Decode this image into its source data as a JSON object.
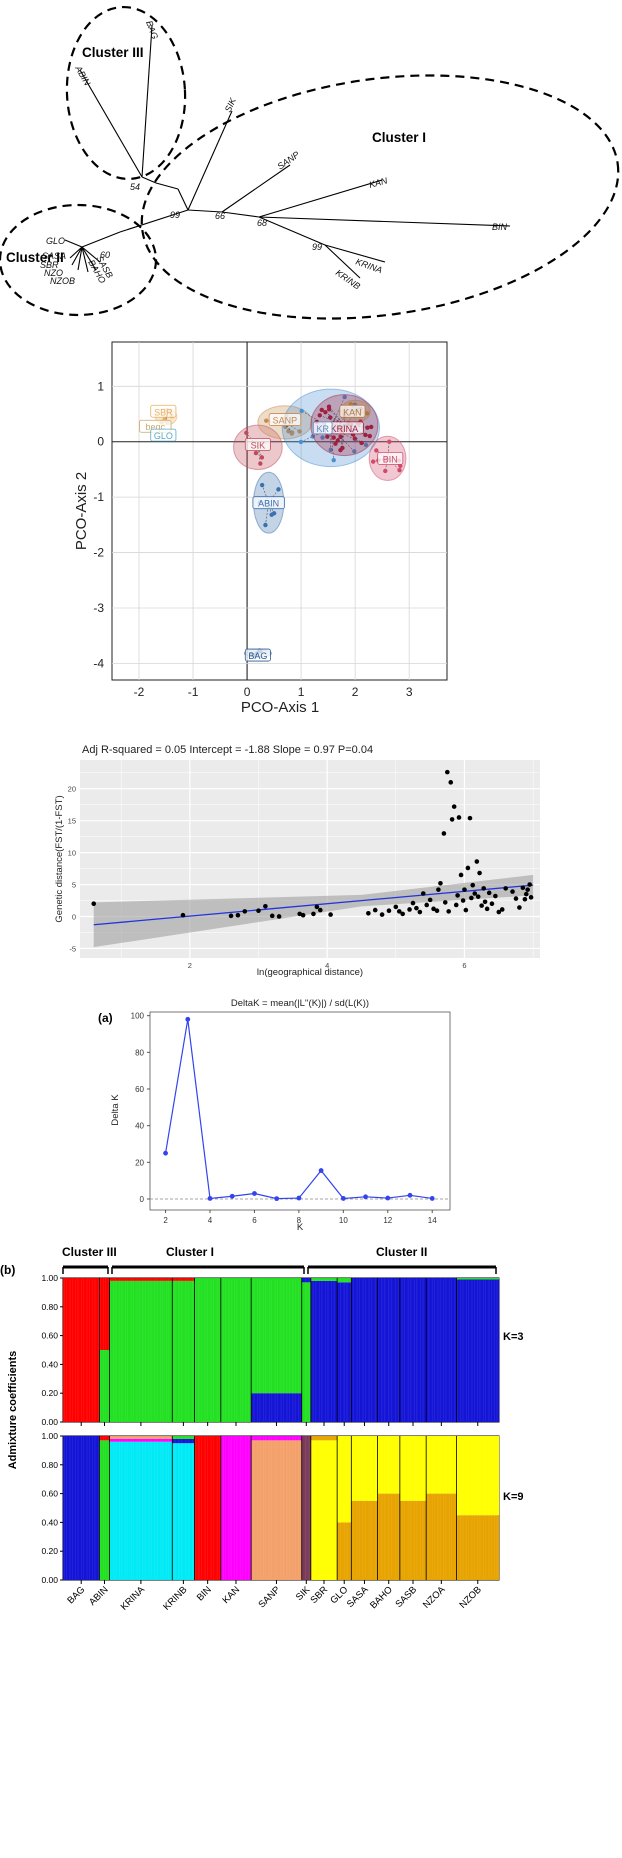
{
  "colors": {
    "red": "#ff0000",
    "green": "#22e022",
    "blue": "#1414d6",
    "cyan": "#00eaf6",
    "magenta": "#ff00ff",
    "orange": "#f4a06a",
    "purple": "#7a3a5a",
    "yellow": "#ffff00",
    "gold": "#e7a400",
    "regression_line": "#2233dd",
    "delta_line": "#3344ee"
  },
  "tree": {
    "clusters": [
      {
        "name": "Cluster III",
        "label": "Cluster III"
      },
      {
        "name": "Cluster I",
        "label": "Cluster I"
      },
      {
        "name": "Cluster II",
        "label": "Cluster II"
      }
    ],
    "tips": [
      {
        "id": "bag",
        "label": "BAG"
      },
      {
        "id": "abin",
        "label": "ABIN"
      },
      {
        "id": "sik",
        "label": "SIK"
      },
      {
        "id": "sanp",
        "label": "SANP"
      },
      {
        "id": "kan",
        "label": "KAN"
      },
      {
        "id": "bin",
        "label": "BIN"
      },
      {
        "id": "krina",
        "label": "KRINA"
      },
      {
        "id": "krinb",
        "label": "KRINB"
      },
      {
        "id": "glo",
        "label": "GLO"
      },
      {
        "id": "sasa",
        "label": "SASA"
      },
      {
        "id": "sbr",
        "label": "SBR"
      },
      {
        "id": "nzo",
        "label": "NZO"
      },
      {
        "id": "baho",
        "label": "BAHO"
      },
      {
        "id": "sasb",
        "label": "SASB"
      },
      {
        "id": "nzob",
        "label": "NZOB"
      }
    ],
    "bootstrap": [
      {
        "id": "b54",
        "label": "54"
      },
      {
        "id": "b99a",
        "label": "99"
      },
      {
        "id": "b66",
        "label": "66"
      },
      {
        "id": "b68",
        "label": "68"
      },
      {
        "id": "b99b",
        "label": "99"
      },
      {
        "id": "b60",
        "label": "60"
      }
    ]
  },
  "pco": {
    "xlabel": "PCO-Axis 1",
    "ylabel": "PCO-Axis 2",
    "xticks": [
      "-2",
      "-1",
      "0",
      "1",
      "2",
      "3"
    ],
    "yticks": [
      "1",
      "0",
      "-1",
      "-2",
      "-3",
      "-4"
    ],
    "xlim": [
      -2.5,
      3.7
    ],
    "ylim": [
      -4.3,
      1.8
    ],
    "groups": [
      {
        "label": "SBR",
        "x": -1.55,
        "y": 0.55,
        "color": "#e8b060"
      },
      {
        "label": "beqc",
        "x": -1.7,
        "y": 0.28,
        "color": "#c8a86a"
      },
      {
        "label": "GLO",
        "x": -1.55,
        "y": 0.12,
        "color": "#5aa8c8"
      },
      {
        "label": "SIK",
        "x": 0.2,
        "y": -0.05,
        "color": "#c04a5a"
      },
      {
        "label": "SANP",
        "x": 0.7,
        "y": 0.4,
        "color": "#c88a50"
      },
      {
        "label": "KAN",
        "x": 1.95,
        "y": 0.55,
        "color": "#b07840"
      },
      {
        "label": "KRINA",
        "x": 1.8,
        "y": 0.25,
        "color": "#a02040"
      },
      {
        "label": "KR",
        "x": 1.4,
        "y": 0.25,
        "color": "#4a90d0"
      },
      {
        "label": "BIN",
        "x": 2.65,
        "y": -0.3,
        "color": "#d04a6a"
      },
      {
        "label": "ABIN",
        "x": 0.4,
        "y": -1.1,
        "color": "#3a70b0"
      },
      {
        "label": "BAG",
        "x": 0.2,
        "y": -3.85,
        "color": "#2a5a90"
      }
    ]
  },
  "ibd": {
    "annotation": "Adj R-squared = 0.05  Intercept = -1.88 Slope = 0.97  P=0.04",
    "xlabel": "ln(geographical distance)",
    "ylabel": "Genetic distance(FST/(1-FST)",
    "xticks": [
      "2",
      "4",
      "6"
    ],
    "yticks": [
      "20",
      "15",
      "10",
      "5",
      "0",
      "-5"
    ],
    "xlim": [
      0.4,
      7.1
    ],
    "ylim": [
      -6.5,
      24.5
    ],
    "intercept": -1.88,
    "slope": 0.97
  },
  "deltak": {
    "panel_label": "(a)",
    "title": "DeltaK = mean(|L''(K)|) / sd(L(K))",
    "xlabel": "K",
    "ylabel": "Delta K",
    "xticks": [
      "2",
      "4",
      "6",
      "8",
      "10",
      "12",
      "14"
    ],
    "yticks": [
      "100",
      "80",
      "60",
      "40",
      "20",
      "0"
    ],
    "xlim": [
      1.3,
      14.8
    ],
    "ylim": [
      -6,
      102
    ]
  },
  "structure": {
    "panel_label": "(b)",
    "ylabel": "Admixture coefficients",
    "clusters": [
      "Cluster III",
      "Cluster I",
      "Cluster II"
    ],
    "k3_label": "K=3",
    "k9_label": "K=9",
    "yticks": [
      "1.00",
      "0.80",
      "0.60",
      "0.40",
      "0.20",
      "0.00"
    ],
    "populations": [
      "BAG",
      "ABIN",
      "KRINA",
      "KRINB",
      "BIN",
      "KAN",
      "SANP",
      "SIK",
      "SBR",
      "GLO",
      "SASA",
      "BAHO",
      "SASB",
      "NZOA",
      "NZOB"
    ]
  },
  "chart_data": [
    {
      "type": "scatter",
      "title": "",
      "xlabel": "PCO-Axis 1",
      "ylabel": "PCO-Axis 2",
      "xlim": [
        -2.5,
        3.7
      ],
      "ylim": [
        -4.3,
        1.8
      ],
      "series": [
        {
          "name": "SBR",
          "points": [
            [
              -1.55,
              0.55
            ]
          ]
        },
        {
          "name": "GLO",
          "points": [
            [
              -1.55,
              0.12
            ]
          ]
        },
        {
          "name": "SIK",
          "points": [
            [
              0.2,
              -0.05
            ]
          ]
        },
        {
          "name": "SANP",
          "points": [
            [
              0.7,
              0.4
            ]
          ]
        },
        {
          "name": "KAN",
          "points": [
            [
              1.95,
              0.55
            ]
          ]
        },
        {
          "name": "KRINA",
          "points": [
            [
              1.8,
              0.25
            ]
          ]
        },
        {
          "name": "BIN",
          "points": [
            [
              2.65,
              -0.3
            ]
          ]
        },
        {
          "name": "ABIN",
          "points": [
            [
              0.4,
              -1.1
            ]
          ]
        },
        {
          "name": "BAG",
          "points": [
            [
              0.2,
              -3.85
            ]
          ]
        }
      ]
    },
    {
      "type": "scatter",
      "title": "Adj R-squared = 0.05  Intercept = -1.88 Slope = 0.97  P=0.04",
      "xlabel": "ln(geographical distance)",
      "ylabel": "Genetic distance(FST/(1-FST)",
      "xlim": [
        0.4,
        7.1
      ],
      "ylim": [
        -6.5,
        24.5
      ],
      "points": [
        [
          0.6,
          2.0
        ],
        [
          1.9,
          0.2
        ],
        [
          2.6,
          0.1
        ],
        [
          2.7,
          0.2
        ],
        [
          2.8,
          0.8
        ],
        [
          3.0,
          0.9
        ],
        [
          3.1,
          1.6
        ],
        [
          3.2,
          0.1
        ],
        [
          3.3,
          0.0
        ],
        [
          3.6,
          0.4
        ],
        [
          3.65,
          0.2
        ],
        [
          3.8,
          0.4
        ],
        [
          3.85,
          1.5
        ],
        [
          3.9,
          1.0
        ],
        [
          4.05,
          0.3
        ],
        [
          4.6,
          0.5
        ],
        [
          4.7,
          1.0
        ],
        [
          4.8,
          0.3
        ],
        [
          4.9,
          0.9
        ],
        [
          5.0,
          1.5
        ],
        [
          5.05,
          0.8
        ],
        [
          5.1,
          0.4
        ],
        [
          5.2,
          1.1
        ],
        [
          5.25,
          2.1
        ],
        [
          5.3,
          1.3
        ],
        [
          5.35,
          0.7
        ],
        [
          5.4,
          3.6
        ],
        [
          5.45,
          1.8
        ],
        [
          5.5,
          2.6
        ],
        [
          5.55,
          1.2
        ],
        [
          5.6,
          0.9
        ],
        [
          5.62,
          4.2
        ],
        [
          5.65,
          5.2
        ],
        [
          5.7,
          13.0
        ],
        [
          5.72,
          2.2
        ],
        [
          5.75,
          22.6
        ],
        [
          5.77,
          0.8
        ],
        [
          5.8,
          21.0
        ],
        [
          5.82,
          15.2
        ],
        [
          5.85,
          17.2
        ],
        [
          5.88,
          1.8
        ],
        [
          5.9,
          3.3
        ],
        [
          5.92,
          15.5
        ],
        [
          5.95,
          6.5
        ],
        [
          5.98,
          2.5
        ],
        [
          6.0,
          4.2
        ],
        [
          6.02,
          1.0
        ],
        [
          6.05,
          7.6
        ],
        [
          6.08,
          15.4
        ],
        [
          6.1,
          2.9
        ],
        [
          6.12,
          4.9
        ],
        [
          6.15,
          3.6
        ],
        [
          6.18,
          8.6
        ],
        [
          6.2,
          3.1
        ],
        [
          6.22,
          6.8
        ],
        [
          6.25,
          1.7
        ],
        [
          6.28,
          4.4
        ],
        [
          6.3,
          2.3
        ],
        [
          6.33,
          1.2
        ],
        [
          6.36,
          3.7
        ],
        [
          6.4,
          2.0
        ],
        [
          6.45,
          3.2
        ],
        [
          6.5,
          0.7
        ],
        [
          6.55,
          1.1
        ],
        [
          6.6,
          4.4
        ],
        [
          6.7,
          3.9
        ],
        [
          6.75,
          2.8
        ],
        [
          6.8,
          1.4
        ],
        [
          6.85,
          4.5
        ],
        [
          6.88,
          2.7
        ],
        [
          6.9,
          3.5
        ],
        [
          6.92,
          4.2
        ],
        [
          6.95,
          5.0
        ],
        [
          6.97,
          3.0
        ]
      ],
      "fit": {
        "intercept": -1.88,
        "slope": 0.97
      }
    },
    {
      "type": "line",
      "title": "DeltaK = mean(|L''(K)|) / sd(L(K))",
      "xlabel": "K",
      "ylabel": "Delta K",
      "x": [
        2,
        3,
        4,
        5,
        6,
        7,
        8,
        9,
        10,
        11,
        12,
        13,
        14
      ],
      "series": [
        {
          "values": [
            25,
            98,
            0.3,
            1.5,
            3,
            0.2,
            0.5,
            15.5,
            0.3,
            1.2,
            0.5,
            2,
            0.3
          ]
        }
      ],
      "xlim": [
        1.3,
        14.8
      ],
      "ylim": [
        -6,
        102
      ]
    },
    {
      "type": "bar",
      "title": "",
      "ylabel": "Admixture coefficients",
      "categories": [
        "BAG",
        "ABIN",
        "KRINA",
        "KRINB",
        "BIN",
        "KAN",
        "SANP",
        "SIK",
        "SBR",
        "GLO",
        "SASA",
        "BAHO",
        "SASB",
        "NZOA",
        "NZOB"
      ],
      "series": [
        {
          "name": "K=3",
          "groups": [
            {
              "pop": "BAG",
              "dominant": "red"
            },
            {
              "pop": "ABIN",
              "dominant": "red/green"
            },
            {
              "pop": "KRINA",
              "dominant": "green"
            },
            {
              "pop": "KRINB",
              "dominant": "green"
            },
            {
              "pop": "BIN",
              "dominant": "green"
            },
            {
              "pop": "KAN",
              "dominant": "green"
            },
            {
              "pop": "SANP",
              "dominant": "green/blue"
            },
            {
              "pop": "SIK",
              "dominant": "green"
            },
            {
              "pop": "SBR",
              "dominant": "blue"
            },
            {
              "pop": "GLO",
              "dominant": "blue"
            },
            {
              "pop": "SASA",
              "dominant": "blue"
            },
            {
              "pop": "BAHO",
              "dominant": "blue"
            },
            {
              "pop": "SASB",
              "dominant": "blue"
            },
            {
              "pop": "NZOA",
              "dominant": "blue"
            },
            {
              "pop": "NZOB",
              "dominant": "blue"
            }
          ]
        },
        {
          "name": "K=9",
          "groups": [
            {
              "pop": "BAG",
              "dominant": "blue"
            },
            {
              "pop": "ABIN",
              "dominant": "green"
            },
            {
              "pop": "KRINA",
              "dominant": "cyan"
            },
            {
              "pop": "KRINB",
              "dominant": "cyan"
            },
            {
              "pop": "BIN",
              "dominant": "red"
            },
            {
              "pop": "KAN",
              "dominant": "magenta"
            },
            {
              "pop": "SANP",
              "dominant": "orange"
            },
            {
              "pop": "SIK",
              "dominant": "purple"
            },
            {
              "pop": "SBR",
              "dominant": "yellow"
            },
            {
              "pop": "GLO",
              "dominant": "gold"
            },
            {
              "pop": "SASA",
              "dominant": "yellow/gold"
            },
            {
              "pop": "BAHO",
              "dominant": "yellow/gold"
            },
            {
              "pop": "SASB",
              "dominant": "yellow/gold"
            },
            {
              "pop": "NZOA",
              "dominant": "yellow/gold"
            },
            {
              "pop": "NZOB",
              "dominant": "yellow/gold"
            }
          ]
        }
      ],
      "ylim": [
        0,
        1
      ]
    }
  ]
}
